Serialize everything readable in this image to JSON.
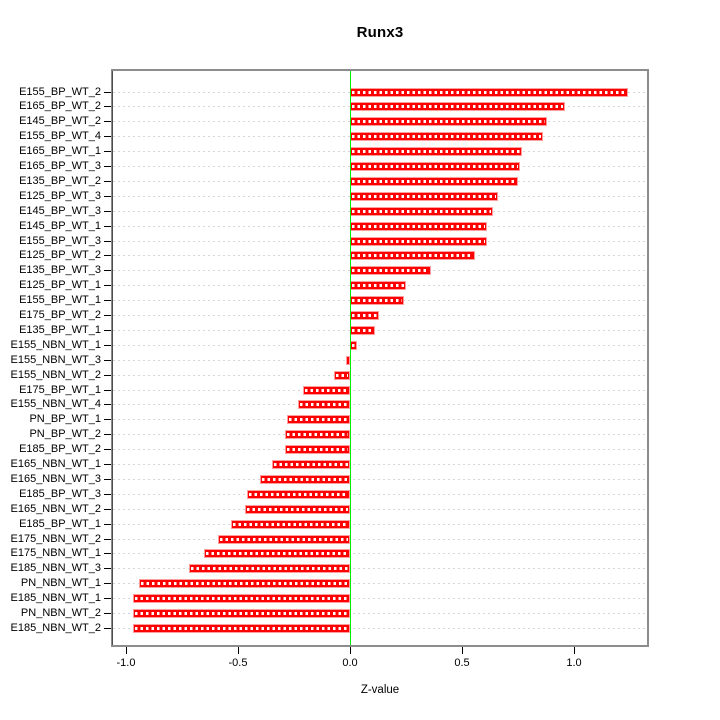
{
  "chart_data": {
    "type": "bar",
    "orientation": "horizontal",
    "title": "Runx3",
    "xlabel": "Z-value",
    "ylabel": "",
    "xlim": [
      -1.06,
      1.33
    ],
    "grid": true,
    "legend": "none",
    "x_tick_labels": [
      "-1.0",
      "-0.5",
      "0.0",
      "0.5",
      "1.0"
    ],
    "x_tick_values": [
      -1.0,
      -0.5,
      0.0,
      0.5,
      1.0
    ],
    "categories": [
      "E155_BP_WT_2",
      "E165_BP_WT_2",
      "E145_BP_WT_2",
      "E155_BP_WT_4",
      "E165_BP_WT_1",
      "E165_BP_WT_3",
      "E135_BP_WT_2",
      "E125_BP_WT_3",
      "E145_BP_WT_3",
      "E145_BP_WT_1",
      "E155_BP_WT_3",
      "E125_BP_WT_2",
      "E135_BP_WT_3",
      "E125_BP_WT_1",
      "E155_BP_WT_1",
      "E175_BP_WT_2",
      "E135_BP_WT_1",
      "E155_NBN_WT_1",
      "E155_NBN_WT_3",
      "E155_NBN_WT_2",
      "E175_BP_WT_1",
      "E155_NBN_WT_4",
      "PN_BP_WT_1",
      "PN_BP_WT_2",
      "E185_BP_WT_2",
      "E165_NBN_WT_1",
      "E165_NBN_WT_3",
      "E185_BP_WT_3",
      "E165_NBN_WT_2",
      "E185_BP_WT_1",
      "E175_NBN_WT_2",
      "E175_NBN_WT_1",
      "E185_NBN_WT_3",
      "PN_NBN_WT_1",
      "E185_NBN_WT_1",
      "PN_NBN_WT_2",
      "E185_NBN_WT_2"
    ],
    "values": [
      1.24,
      0.96,
      0.88,
      0.86,
      0.77,
      0.76,
      0.75,
      0.66,
      0.64,
      0.61,
      0.61,
      0.56,
      0.36,
      0.25,
      0.24,
      0.13,
      0.11,
      0.03,
      -0.02,
      -0.07,
      -0.21,
      -0.23,
      -0.28,
      -0.29,
      -0.29,
      -0.35,
      -0.4,
      -0.46,
      -0.47,
      -0.53,
      -0.59,
      -0.65,
      -0.72,
      -0.94,
      -0.97,
      -0.97,
      -0.97
    ],
    "colors": {
      "bar_fill": "#ff0000",
      "bar_border": "#ff9e9e",
      "bar_dash_overlay": "#ffffff",
      "zero_line": "#00ee00",
      "gridline": "#d6d6d6",
      "frame": "#8c8c8c",
      "text": "#000000"
    }
  }
}
